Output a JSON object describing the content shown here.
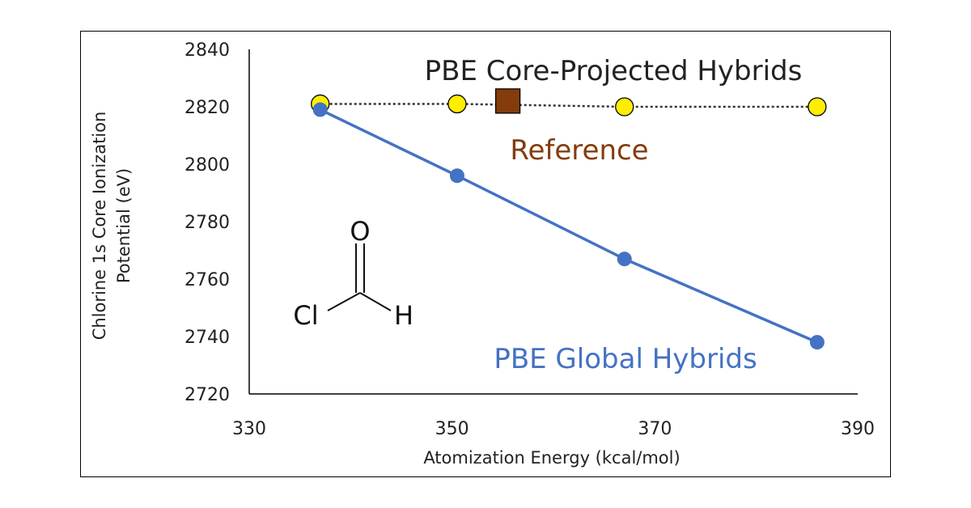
{
  "chart_data": {
    "type": "scatter",
    "xlabel": "Atomization Energy (kcal/mol)",
    "ylabel_lines": [
      "Chlorine 1s Core Ionization",
      "Potential (eV)"
    ],
    "xlim": [
      330,
      390
    ],
    "ylim": [
      2720,
      2840
    ],
    "x_ticks": [
      "330",
      "350",
      "370",
      "390"
    ],
    "y_ticks": [
      "2720",
      "2740",
      "2760",
      "2780",
      "2800",
      "2820",
      "2840"
    ],
    "grid": false,
    "series": [
      {
        "name": "PBE Core-Projected Hybrids",
        "color": "#ffee00",
        "line": "dotted",
        "marker": "circle",
        "x": [
          337.0,
          350.5,
          367.0,
          386.0
        ],
        "y": [
          2821,
          2821,
          2820,
          2820
        ]
      },
      {
        "name": "PBE Global Hybrids",
        "color": "#4472c4",
        "line": "solid",
        "marker": "circle",
        "x": [
          337.0,
          350.5,
          367.0,
          386.0
        ],
        "y": [
          2819,
          2796,
          2767,
          2738
        ]
      },
      {
        "name": "Reference",
        "color": "#843c0c",
        "line": "none",
        "marker": "square",
        "x": [
          355.5
        ],
        "y": [
          2822
        ]
      }
    ],
    "molecule": {
      "atoms": [
        "O",
        "Cl",
        "H"
      ]
    }
  }
}
